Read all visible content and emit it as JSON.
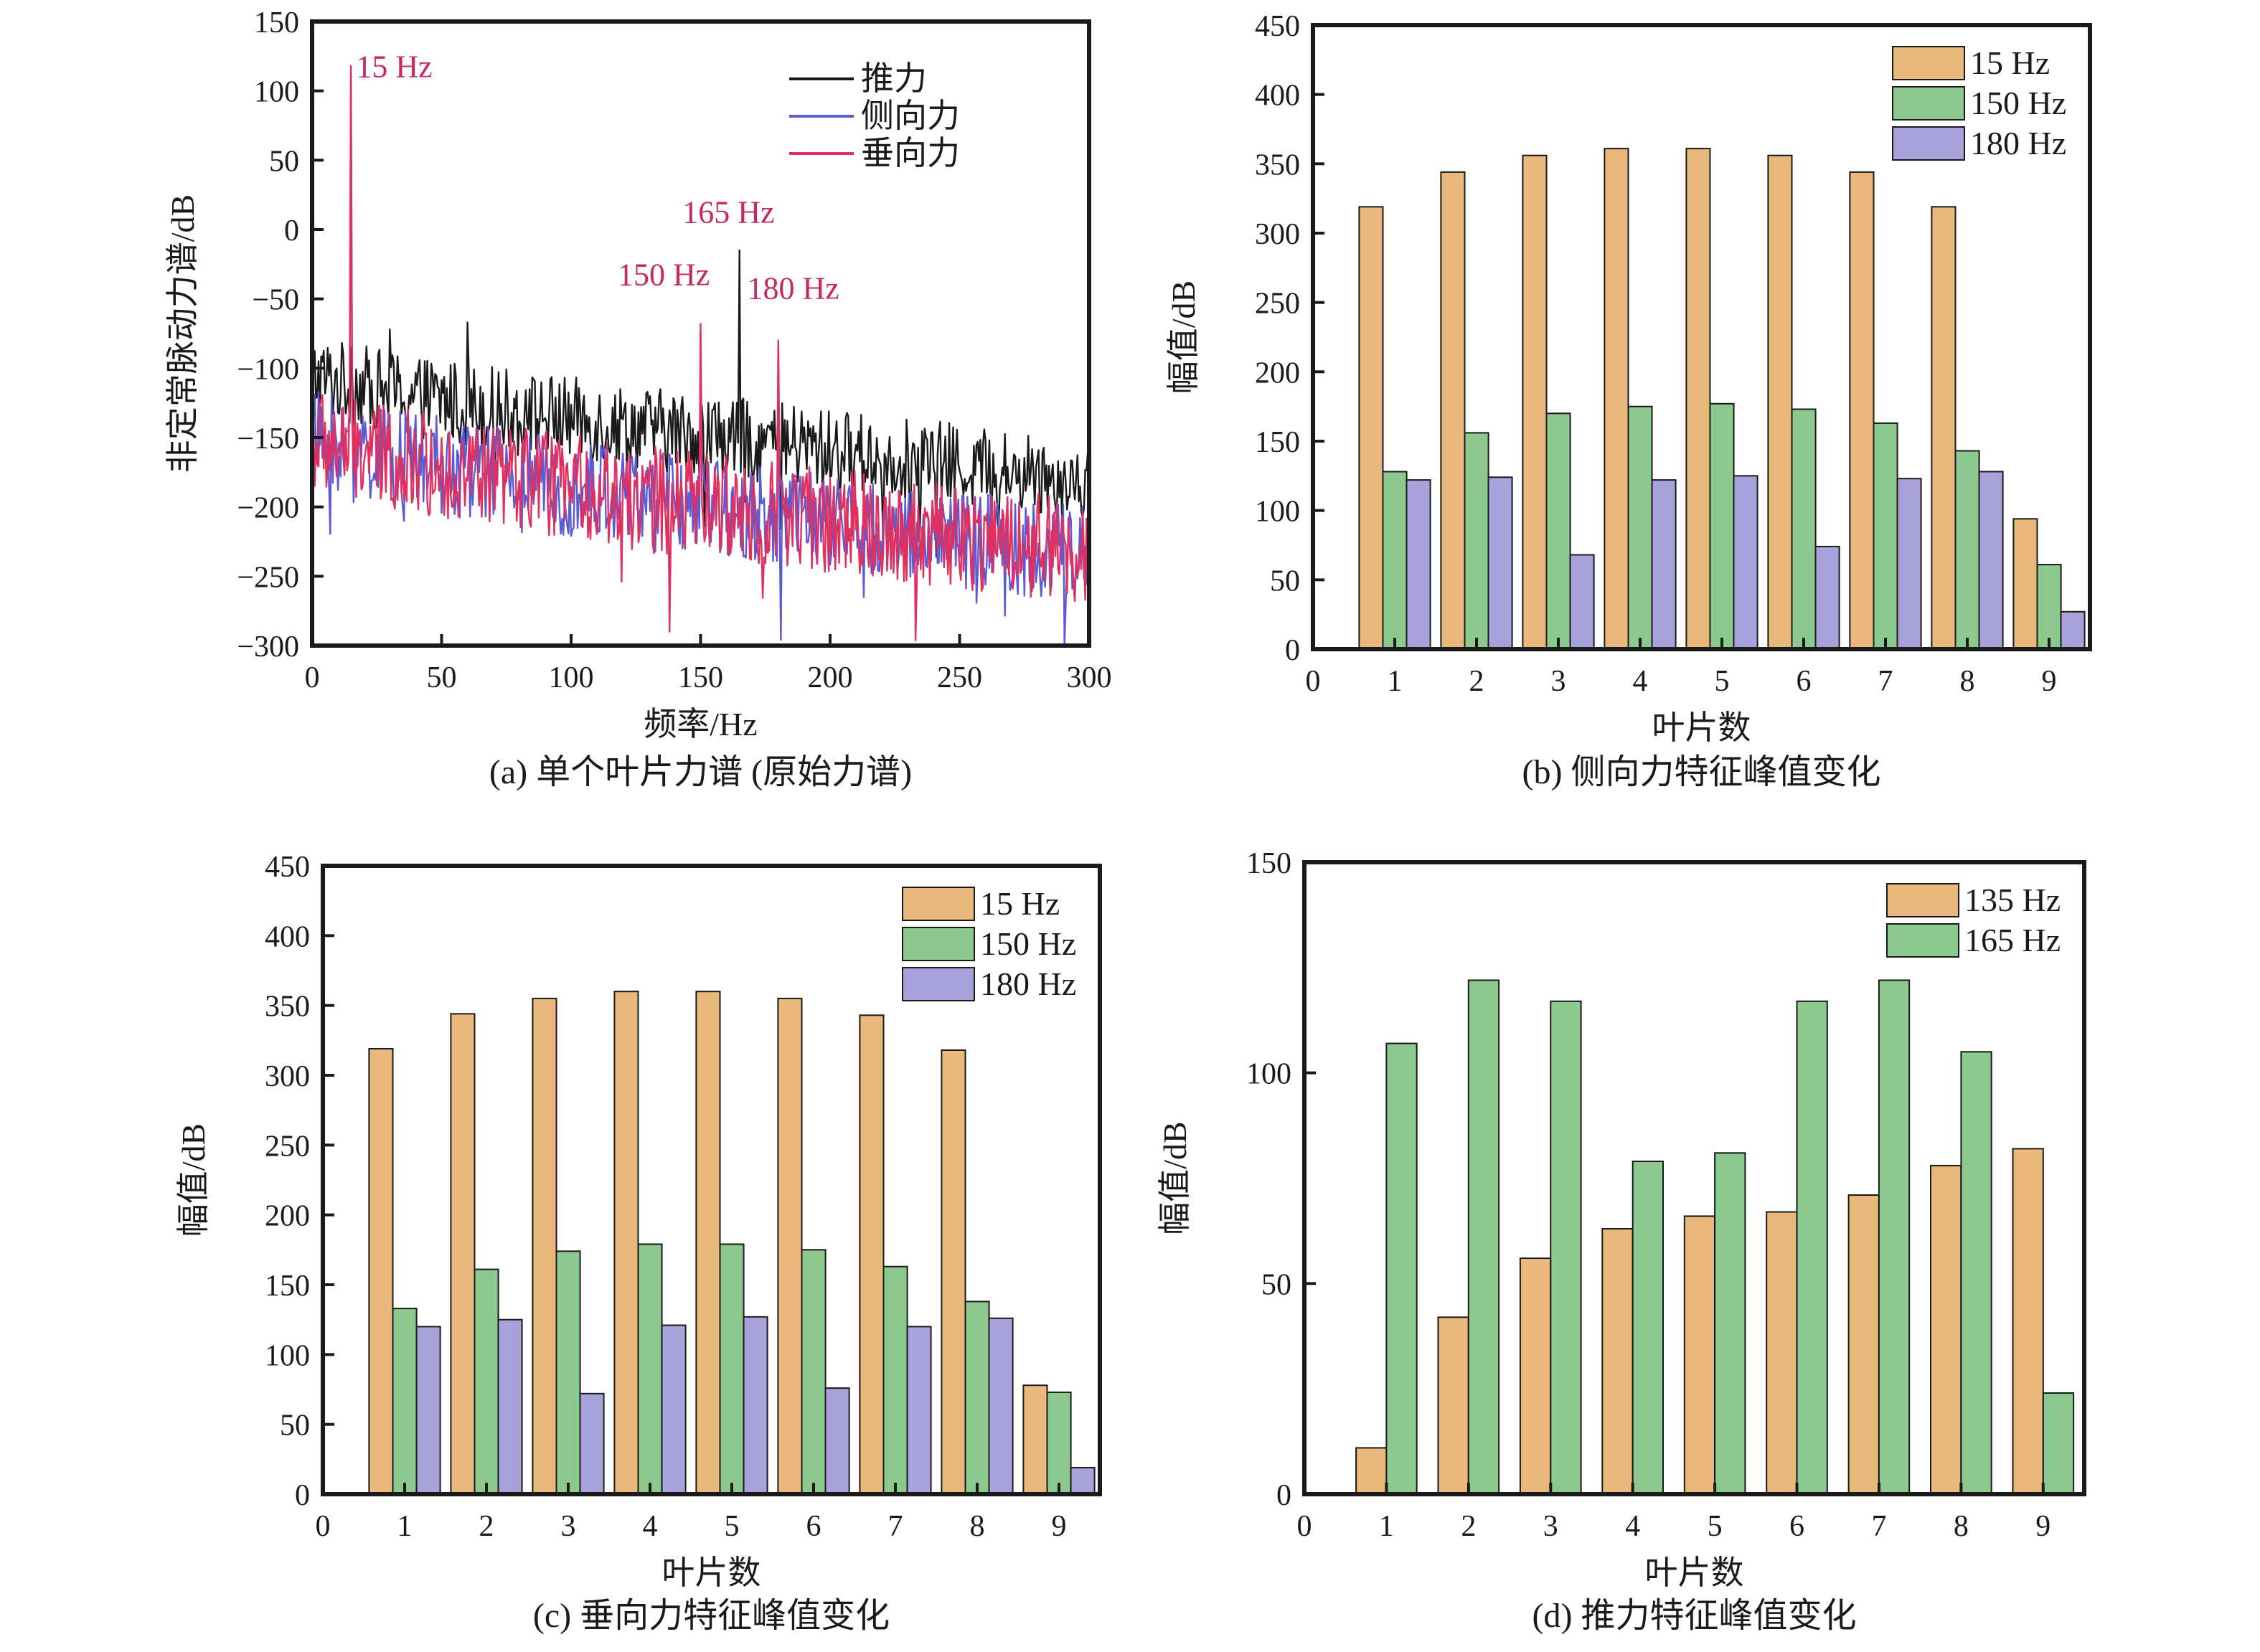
{
  "chart_data": [
    {
      "id": "a",
      "type": "line",
      "caption": "(a) 单个叶片力谱 (原始力谱)",
      "xlabel": "频率/Hz",
      "ylabel": "非定常脉动力谱/dB",
      "xlim": [
        0,
        300
      ],
      "ylim": [
        -300,
        150
      ],
      "xticks": [
        0,
        50,
        100,
        150,
        200,
        250,
        300
      ],
      "yticks": [
        -300,
        -250,
        -200,
        -150,
        -100,
        -50,
        0,
        50,
        100,
        150
      ],
      "legend_position": "top-right",
      "series": [
        {
          "name": "推力",
          "color": "#1a1a1a",
          "baseline_start": -105,
          "baseline_end": -180,
          "noise": 30,
          "peaks": [
            {
              "x": 15,
              "y": -85
            },
            {
              "x": 30,
              "y": -72
            },
            {
              "x": 60,
              "y": -67
            },
            {
              "x": 165,
              "y": -15
            }
          ]
        },
        {
          "name": "侧向力",
          "color": "#5b5bd6",
          "baseline_start": -150,
          "baseline_end": -235,
          "noise": 36,
          "peaks": [
            {
              "x": 15,
              "y": 110
            },
            {
              "x": 150,
              "y": -75
            },
            {
              "x": 180,
              "y": -85
            }
          ]
        },
        {
          "name": "垂向力",
          "color": "#e0305f",
          "baseline_start": -152,
          "baseline_end": -232,
          "noise": 38,
          "peaks": [
            {
              "x": 15,
              "y": 118
            },
            {
              "x": 150,
              "y": -68
            },
            {
              "x": 180,
              "y": -80
            }
          ]
        }
      ],
      "annotations": [
        {
          "text": "15 Hz",
          "x": 17,
          "y": 110
        },
        {
          "text": "165 Hz",
          "x": 143,
          "y": 5
        },
        {
          "text": "150 Hz",
          "x": 118,
          "y": -40
        },
        {
          "text": "180 Hz",
          "x": 168,
          "y": -50
        }
      ],
      "annotation_color": "#c8285a"
    },
    {
      "id": "b",
      "type": "bar",
      "caption": "(b) 侧向力特征峰值变化",
      "xlabel": "叶片数",
      "ylabel": "幅值/dB",
      "xlim": [
        0,
        9.5
      ],
      "ylim": [
        0,
        450
      ],
      "xticks": [
        0,
        1,
        2,
        3,
        4,
        5,
        6,
        7,
        8,
        9
      ],
      "yticks": [
        0,
        50,
        100,
        150,
        200,
        250,
        300,
        350,
        400,
        450
      ],
      "categories": [
        1,
        2,
        3,
        4,
        5,
        6,
        7,
        8,
        9
      ],
      "legend_position": "top-right",
      "series": [
        {
          "name": "15 Hz",
          "color": "#e8b97a",
          "values": [
            319,
            344,
            356,
            361,
            361,
            356,
            344,
            319,
            94
          ]
        },
        {
          "name": "150 Hz",
          "color": "#8cc98e",
          "values": [
            128,
            156,
            170,
            175,
            177,
            173,
            163,
            143,
            61
          ]
        },
        {
          "name": "180 Hz",
          "color": "#a7a2d9",
          "values": [
            122,
            124,
            68,
            122,
            125,
            74,
            123,
            128,
            27
          ]
        }
      ]
    },
    {
      "id": "c",
      "type": "bar",
      "caption": "(c) 垂向力特征峰值变化",
      "xlabel": "叶片数",
      "ylabel": "幅值/dB",
      "xlim": [
        0,
        9.5
      ],
      "ylim": [
        0,
        450
      ],
      "xticks": [
        0,
        1,
        2,
        3,
        4,
        5,
        6,
        7,
        8,
        9
      ],
      "yticks": [
        0,
        50,
        100,
        150,
        200,
        250,
        300,
        350,
        400,
        450
      ],
      "categories": [
        1,
        2,
        3,
        4,
        5,
        6,
        7,
        8,
        9
      ],
      "legend_position": "top-right",
      "series": [
        {
          "name": "15 Hz",
          "color": "#e8b97a",
          "values": [
            319,
            344,
            355,
            360,
            360,
            355,
            343,
            318,
            78
          ]
        },
        {
          "name": "150 Hz",
          "color": "#8cc98e",
          "values": [
            133,
            161,
            174,
            179,
            179,
            175,
            163,
            138,
            73
          ]
        },
        {
          "name": "180 Hz",
          "color": "#a7a2d9",
          "values": [
            120,
            125,
            72,
            121,
            127,
            76,
            120,
            126,
            19
          ]
        }
      ]
    },
    {
      "id": "d",
      "type": "bar",
      "caption": "(d) 推力特征峰值变化",
      "xlabel": "叶片数",
      "ylabel": "幅值/dB",
      "xlim": [
        0,
        9.5
      ],
      "ylim": [
        0,
        150
      ],
      "xticks": [
        0,
        1,
        2,
        3,
        4,
        5,
        6,
        7,
        8,
        9
      ],
      "yticks": [
        0,
        50,
        100,
        150
      ],
      "categories": [
        1,
        2,
        3,
        4,
        5,
        6,
        7,
        8,
        9
      ],
      "legend_position": "top-right",
      "series": [
        {
          "name": "135 Hz",
          "color": "#e8b97a",
          "values": [
            11,
            42,
            56,
            63,
            66,
            67,
            71,
            78,
            82
          ]
        },
        {
          "name": "165 Hz",
          "color": "#8cc98e",
          "values": [
            107,
            122,
            117,
            79,
            81,
            117,
            122,
            105,
            24
          ]
        }
      ]
    }
  ]
}
